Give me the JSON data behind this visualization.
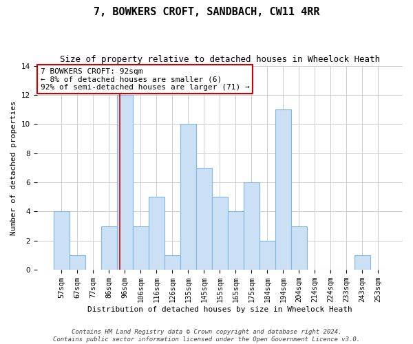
{
  "title": "7, BOWKERS CROFT, SANDBACH, CW11 4RR",
  "subtitle": "Size of property relative to detached houses in Wheelock Heath",
  "xlabel": "Distribution of detached houses by size in Wheelock Heath",
  "ylabel": "Number of detached properties",
  "bin_labels": [
    "57sqm",
    "67sqm",
    "77sqm",
    "86sqm",
    "96sqm",
    "106sqm",
    "116sqm",
    "126sqm",
    "135sqm",
    "145sqm",
    "155sqm",
    "165sqm",
    "175sqm",
    "184sqm",
    "194sqm",
    "204sqm",
    "214sqm",
    "224sqm",
    "233sqm",
    "243sqm",
    "253sqm"
  ],
  "bar_heights": [
    4,
    1,
    0,
    3,
    12,
    3,
    5,
    1,
    10,
    7,
    5,
    4,
    6,
    2,
    11,
    3,
    0,
    0,
    0,
    1,
    0
  ],
  "bar_color": "#cce0f5",
  "bar_edge_color": "#7db8e0",
  "annotation_line1": "7 BOWKERS CROFT: 92sqm",
  "annotation_line2": "← 8% of detached houses are smaller (6)",
  "annotation_line3": "92% of semi-detached houses are larger (71) →",
  "annotation_box_color": "#ffffff",
  "annotation_box_edge_color": "#cc0000",
  "property_line_x": 3.7,
  "ylim": [
    0,
    14
  ],
  "yticks": [
    0,
    2,
    4,
    6,
    8,
    10,
    12,
    14
  ],
  "footer_text": "Contains HM Land Registry data © Crown copyright and database right 2024.\nContains public sector information licensed under the Open Government Licence v3.0.",
  "background_color": "#ffffff",
  "grid_color": "#cccccc",
  "title_fontsize": 11,
  "subtitle_fontsize": 9,
  "axis_label_fontsize": 8,
  "tick_fontsize": 7.5,
  "footer_fontsize": 6.5
}
